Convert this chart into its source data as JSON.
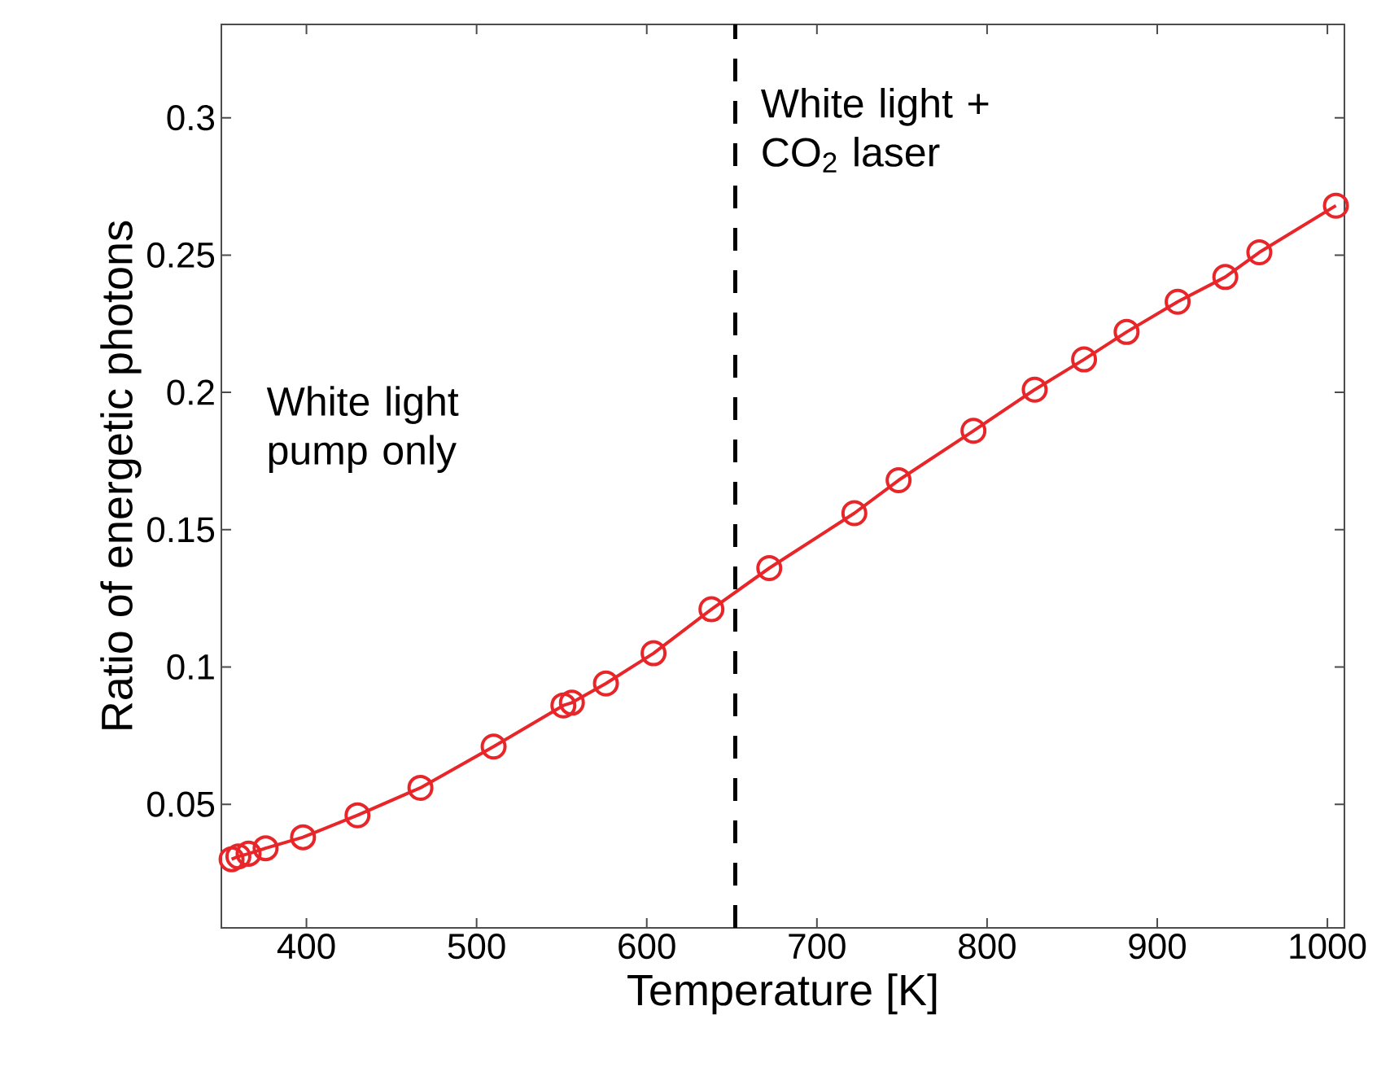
{
  "chart_data": {
    "type": "line",
    "xlabel": "Temperature [K]",
    "ylabel": "Ratio of energetic photons",
    "x": [
      356,
      360,
      366,
      376,
      398,
      430,
      467,
      510,
      551,
      556,
      576,
      604,
      638,
      672,
      722,
      748,
      792,
      828,
      857,
      882,
      912,
      940,
      960,
      1005
    ],
    "series": [
      {
        "color": "#e8262a",
        "values": [
          0.03,
          0.031,
          0.032,
          0.034,
          0.038,
          0.046,
          0.056,
          0.071,
          0.086,
          0.087,
          0.094,
          0.105,
          0.121,
          0.136,
          0.156,
          0.168,
          0.186,
          0.201,
          0.212,
          0.222,
          0.233,
          0.242,
          0.251,
          0.268
        ]
      }
    ],
    "xlim": [
      350,
      1010
    ],
    "ylim": [
      0.005,
      0.334
    ],
    "xticks": [
      400,
      500,
      600,
      700,
      800,
      900,
      1000
    ],
    "yticks": [
      0.05,
      0.1,
      0.15,
      0.2,
      0.25,
      0.3
    ],
    "ref_lines": [
      {
        "axis": "x",
        "value": 652,
        "color": "#000000",
        "line_style": "dashed"
      }
    ],
    "annotations": [
      "White light pump only",
      "White light + CO$_{2}$ laser"
    ],
    "marker": "circle",
    "line_style": "solid"
  }
}
